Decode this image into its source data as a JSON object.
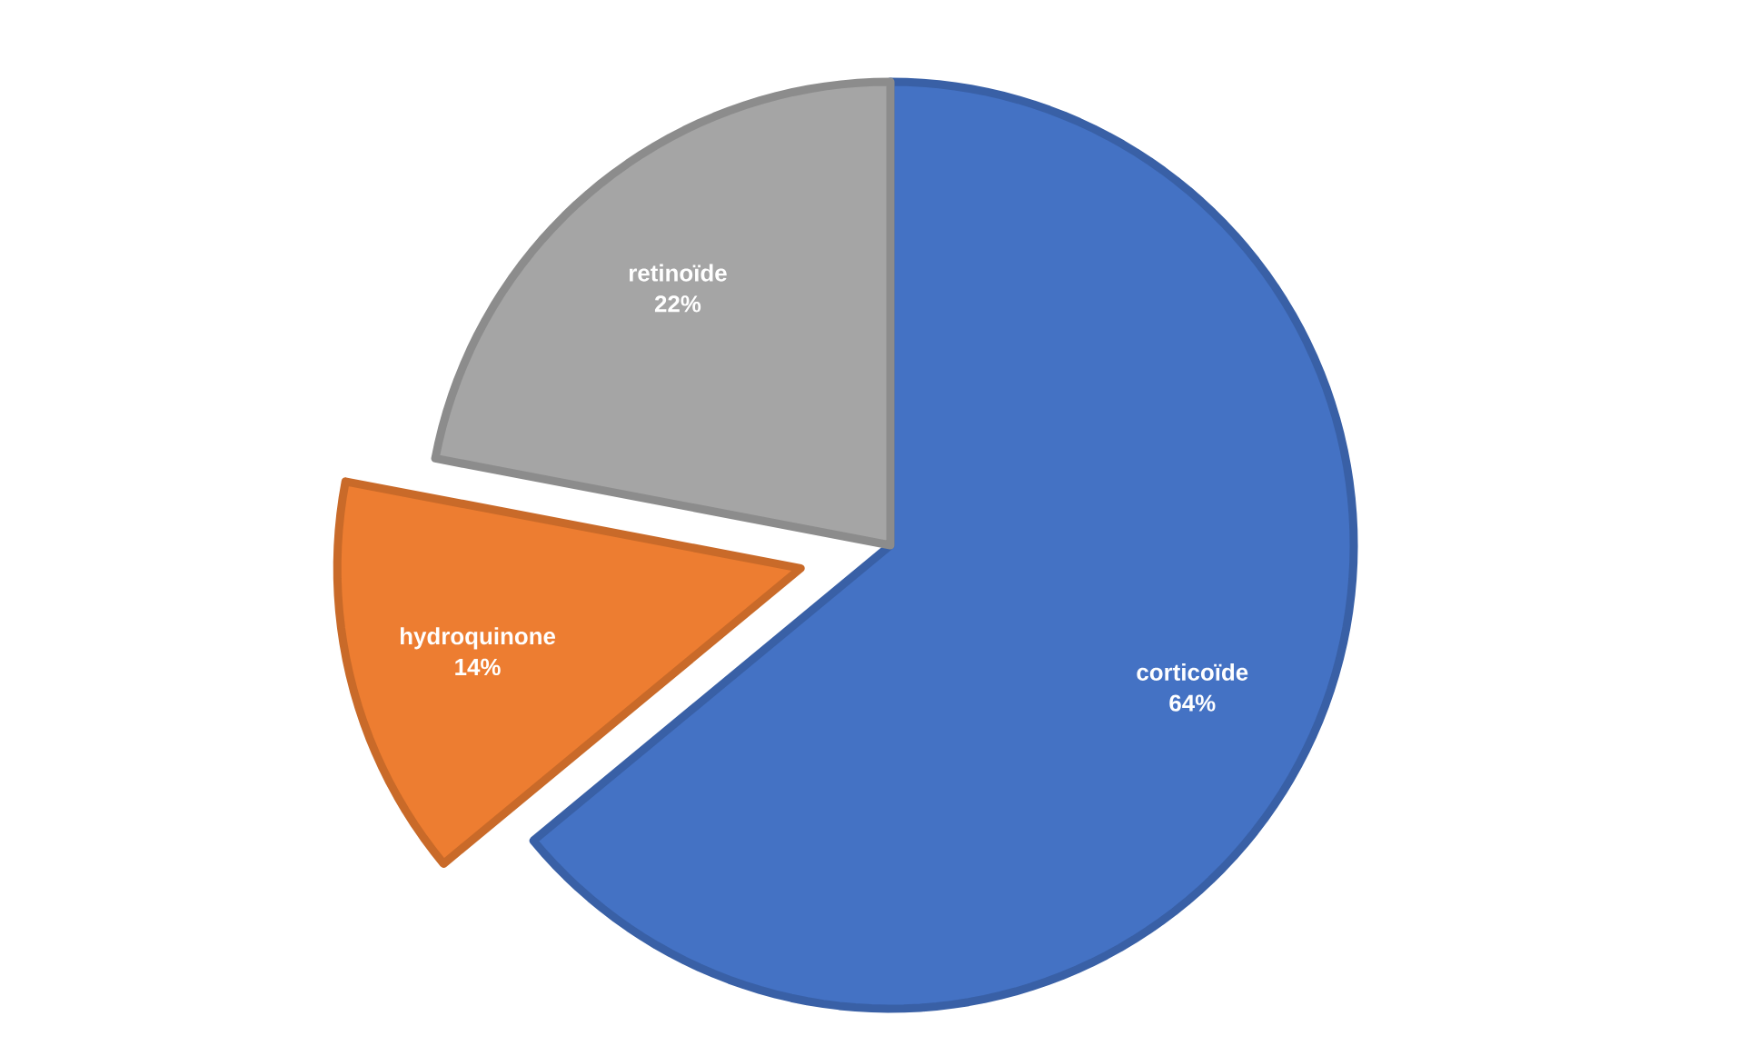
{
  "chart_data": {
    "type": "pie",
    "categories": [
      "corticoïde",
      "hydroquinone",
      "retinoïde"
    ],
    "values": [
      64,
      14,
      22
    ],
    "colors": [
      "#4472c4",
      "#ed7d31",
      "#a5a5a5"
    ],
    "value_labels": [
      "64%",
      "14%",
      "22%"
    ]
  }
}
